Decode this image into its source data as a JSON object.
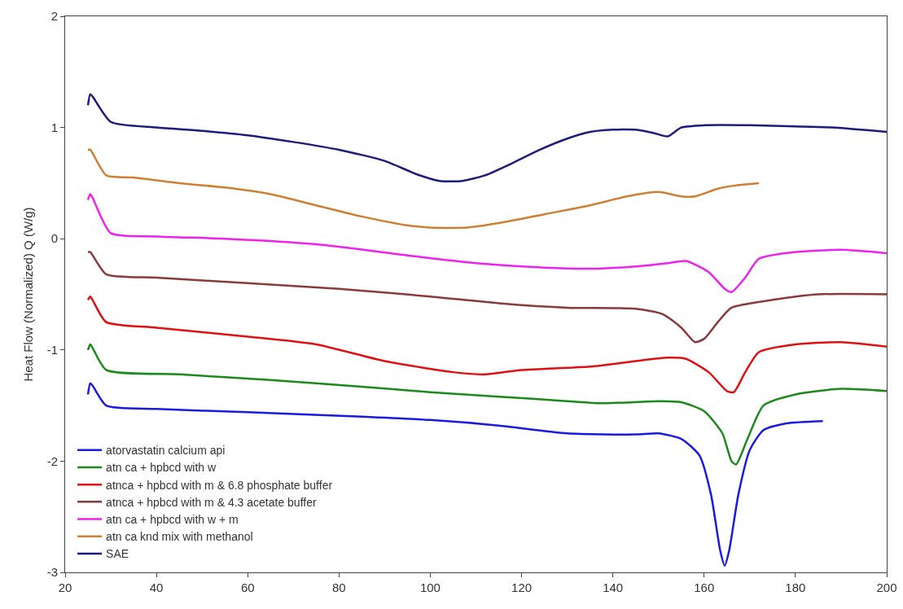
{
  "chart_data": {
    "type": "line",
    "ylabel": "Heat Flow (Normalized) Q (W/g)",
    "xlim": [
      20,
      200
    ],
    "xticks": [
      20,
      40,
      60,
      80,
      100,
      120,
      140,
      160,
      180,
      200
    ],
    "ylim": [
      -3,
      2
    ],
    "yticks": [
      -3,
      -2,
      -1,
      0,
      1,
      2
    ],
    "grid": false,
    "legend": "bottom left",
    "marker": "none",
    "line_style": "solid",
    "series": [
      {
        "name": "atorvastatin calcium api",
        "color": "#1a1ae0",
        "x": [
          25,
          25.5,
          26,
          29,
          40,
          60,
          85,
          100,
          115,
          130,
          145,
          150,
          155,
          159,
          161.5,
          163.5,
          164.5,
          165.5,
          167.5,
          170,
          173,
          178,
          186
        ],
        "values": [
          -1.4,
          -1.3,
          -1.32,
          -1.5,
          -1.53,
          -1.56,
          -1.6,
          -1.63,
          -1.68,
          -1.75,
          -1.76,
          -1.75,
          -1.8,
          -1.95,
          -2.3,
          -2.8,
          -2.94,
          -2.8,
          -2.3,
          -1.9,
          -1.72,
          -1.66,
          -1.64
        ]
      },
      {
        "name": "atn ca + hpbcd with w",
        "color": "#1a8a1a",
        "x": [
          25,
          25.5,
          26,
          29,
          45,
          65,
          85,
          100,
          115,
          130,
          138,
          150,
          155,
          160,
          164,
          166,
          167,
          169.5,
          173,
          180,
          190,
          200
        ],
        "values": [
          -1.0,
          -0.95,
          -0.98,
          -1.18,
          -1.22,
          -1.27,
          -1.33,
          -1.38,
          -1.42,
          -1.46,
          -1.48,
          -1.46,
          -1.47,
          -1.55,
          -1.75,
          -2.0,
          -2.03,
          -1.8,
          -1.5,
          -1.4,
          -1.35,
          -1.37
        ]
      },
      {
        "name": "atnca + hpbcd with m & 6.8 phosphate buffer",
        "color": "#e01010",
        "x": [
          25,
          25.5,
          26,
          29,
          40,
          60,
          75,
          90,
          105,
          112,
          120,
          135,
          145,
          152,
          156,
          161,
          165,
          166.5,
          169,
          172,
          180,
          190,
          200
        ],
        "values": [
          -0.55,
          -0.52,
          -0.55,
          -0.75,
          -0.8,
          -0.88,
          -0.95,
          -1.1,
          -1.2,
          -1.22,
          -1.18,
          -1.15,
          -1.1,
          -1.07,
          -1.08,
          -1.2,
          -1.37,
          -1.38,
          -1.2,
          -1.02,
          -0.95,
          -0.93,
          -0.97
        ]
      },
      {
        "name": "atnca + hpbcd with m & 4.3 acetate buffer",
        "color": "#8b3a3a",
        "x": [
          25,
          25.5,
          29,
          40,
          60,
          80,
          100,
          115,
          130,
          145,
          151,
          155,
          158,
          160,
          163,
          166,
          175,
          185,
          200
        ],
        "values": [
          -0.12,
          -0.12,
          -0.32,
          -0.35,
          -0.4,
          -0.45,
          -0.52,
          -0.58,
          -0.62,
          -0.63,
          -0.68,
          -0.8,
          -0.93,
          -0.9,
          -0.75,
          -0.62,
          -0.55,
          -0.5,
          -0.5
        ]
      },
      {
        "name": "atn ca + hpbcd with w + m",
        "color": "#ee22ee",
        "x": [
          25,
          25.5,
          26,
          30,
          40,
          55,
          75,
          95,
          110,
          125,
          135,
          145,
          152,
          156,
          161,
          164.5,
          166,
          169,
          172,
          180,
          190,
          200
        ],
        "values": [
          0.35,
          0.4,
          0.37,
          0.05,
          0.02,
          0,
          -0.05,
          -0.15,
          -0.22,
          -0.26,
          -0.27,
          -0.25,
          -0.22,
          -0.2,
          -0.3,
          -0.45,
          -0.48,
          -0.35,
          -0.18,
          -0.12,
          -0.1,
          -0.13
        ]
      },
      {
        "name": "atn ca knd mix with methanol",
        "color": "#cd7f32",
        "x": [
          25,
          25.5,
          29,
          35,
          45,
          55,
          65,
          75,
          85,
          95,
          100,
          108,
          115,
          125,
          135,
          143,
          150,
          155,
          158,
          163,
          167,
          172
        ],
        "values": [
          0.8,
          0.8,
          0.57,
          0.55,
          0.5,
          0.46,
          0.4,
          0.3,
          0.2,
          0.12,
          0.1,
          0.1,
          0.14,
          0.22,
          0.3,
          0.38,
          0.42,
          0.38,
          0.38,
          0.45,
          0.48,
          0.5
        ]
      },
      {
        "name": "SAE",
        "color": "#1c1c7c",
        "x": [
          25,
          25.5,
          26,
          30,
          40,
          50,
          60,
          70,
          80,
          90,
          97,
          102,
          107,
          112,
          118,
          124,
          130,
          135,
          140,
          145,
          149,
          152,
          155,
          160,
          170,
          180,
          188,
          200
        ],
        "values": [
          1.2,
          1.3,
          1.28,
          1.05,
          1.0,
          0.97,
          0.93,
          0.87,
          0.8,
          0.7,
          0.58,
          0.52,
          0.52,
          0.57,
          0.68,
          0.8,
          0.9,
          0.96,
          0.98,
          0.98,
          0.95,
          0.92,
          1.0,
          1.02,
          1.02,
          1.01,
          1.0,
          0.96
        ]
      }
    ]
  }
}
